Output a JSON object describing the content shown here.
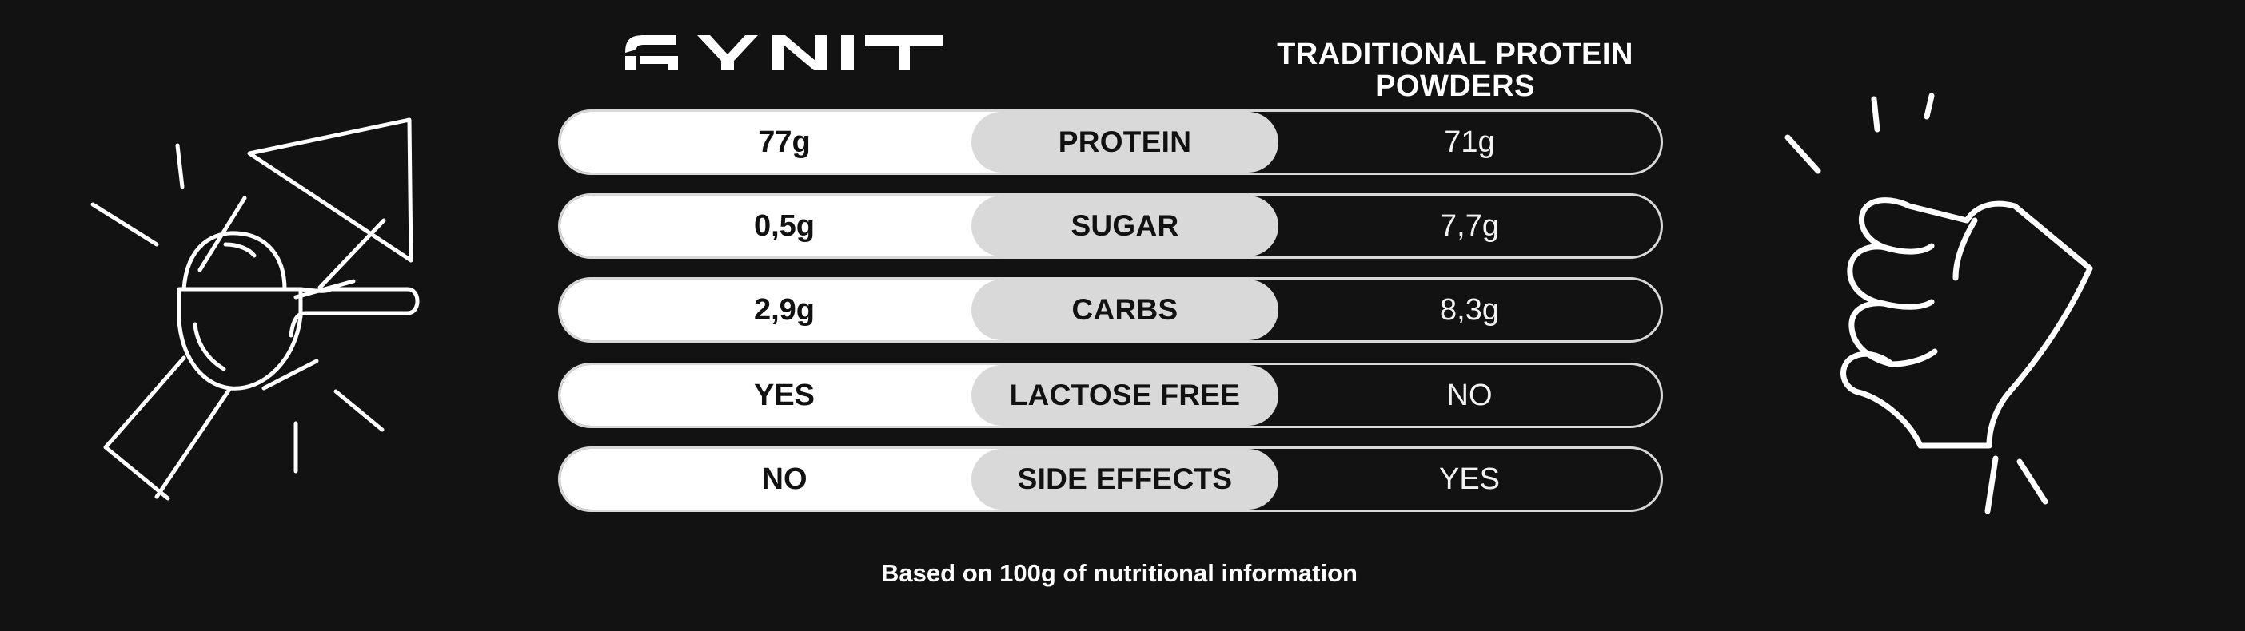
{
  "brand": {
    "logo_text": "SYNIT"
  },
  "competitor": {
    "title_line1": "TRADITIONAL PROTEIN",
    "title_line2": "POWDERS"
  },
  "rows": [
    {
      "synit": "77g",
      "metric": "PROTEIN",
      "competitor": "71g"
    },
    {
      "synit": "0,5g",
      "metric": "SUGAR",
      "competitor": "7,7g"
    },
    {
      "synit": "2,9g",
      "metric": "CARBS",
      "competitor": "8,3g"
    },
    {
      "synit": "YES",
      "metric": "LACTOSE FREE",
      "competitor": "NO"
    },
    {
      "synit": "NO",
      "metric": "SIDE EFFECTS",
      "competitor": "YES"
    }
  ],
  "footnote": "Based on 100g of nutritional information",
  "icons": {
    "left": "protein-scoop-icon",
    "right": "thumbs-down-icon"
  },
  "colors": {
    "background": "#121212",
    "synit_pill": "#ffffff",
    "metric_pill": "#d9d9d9",
    "outline": "#d8d8d8"
  }
}
